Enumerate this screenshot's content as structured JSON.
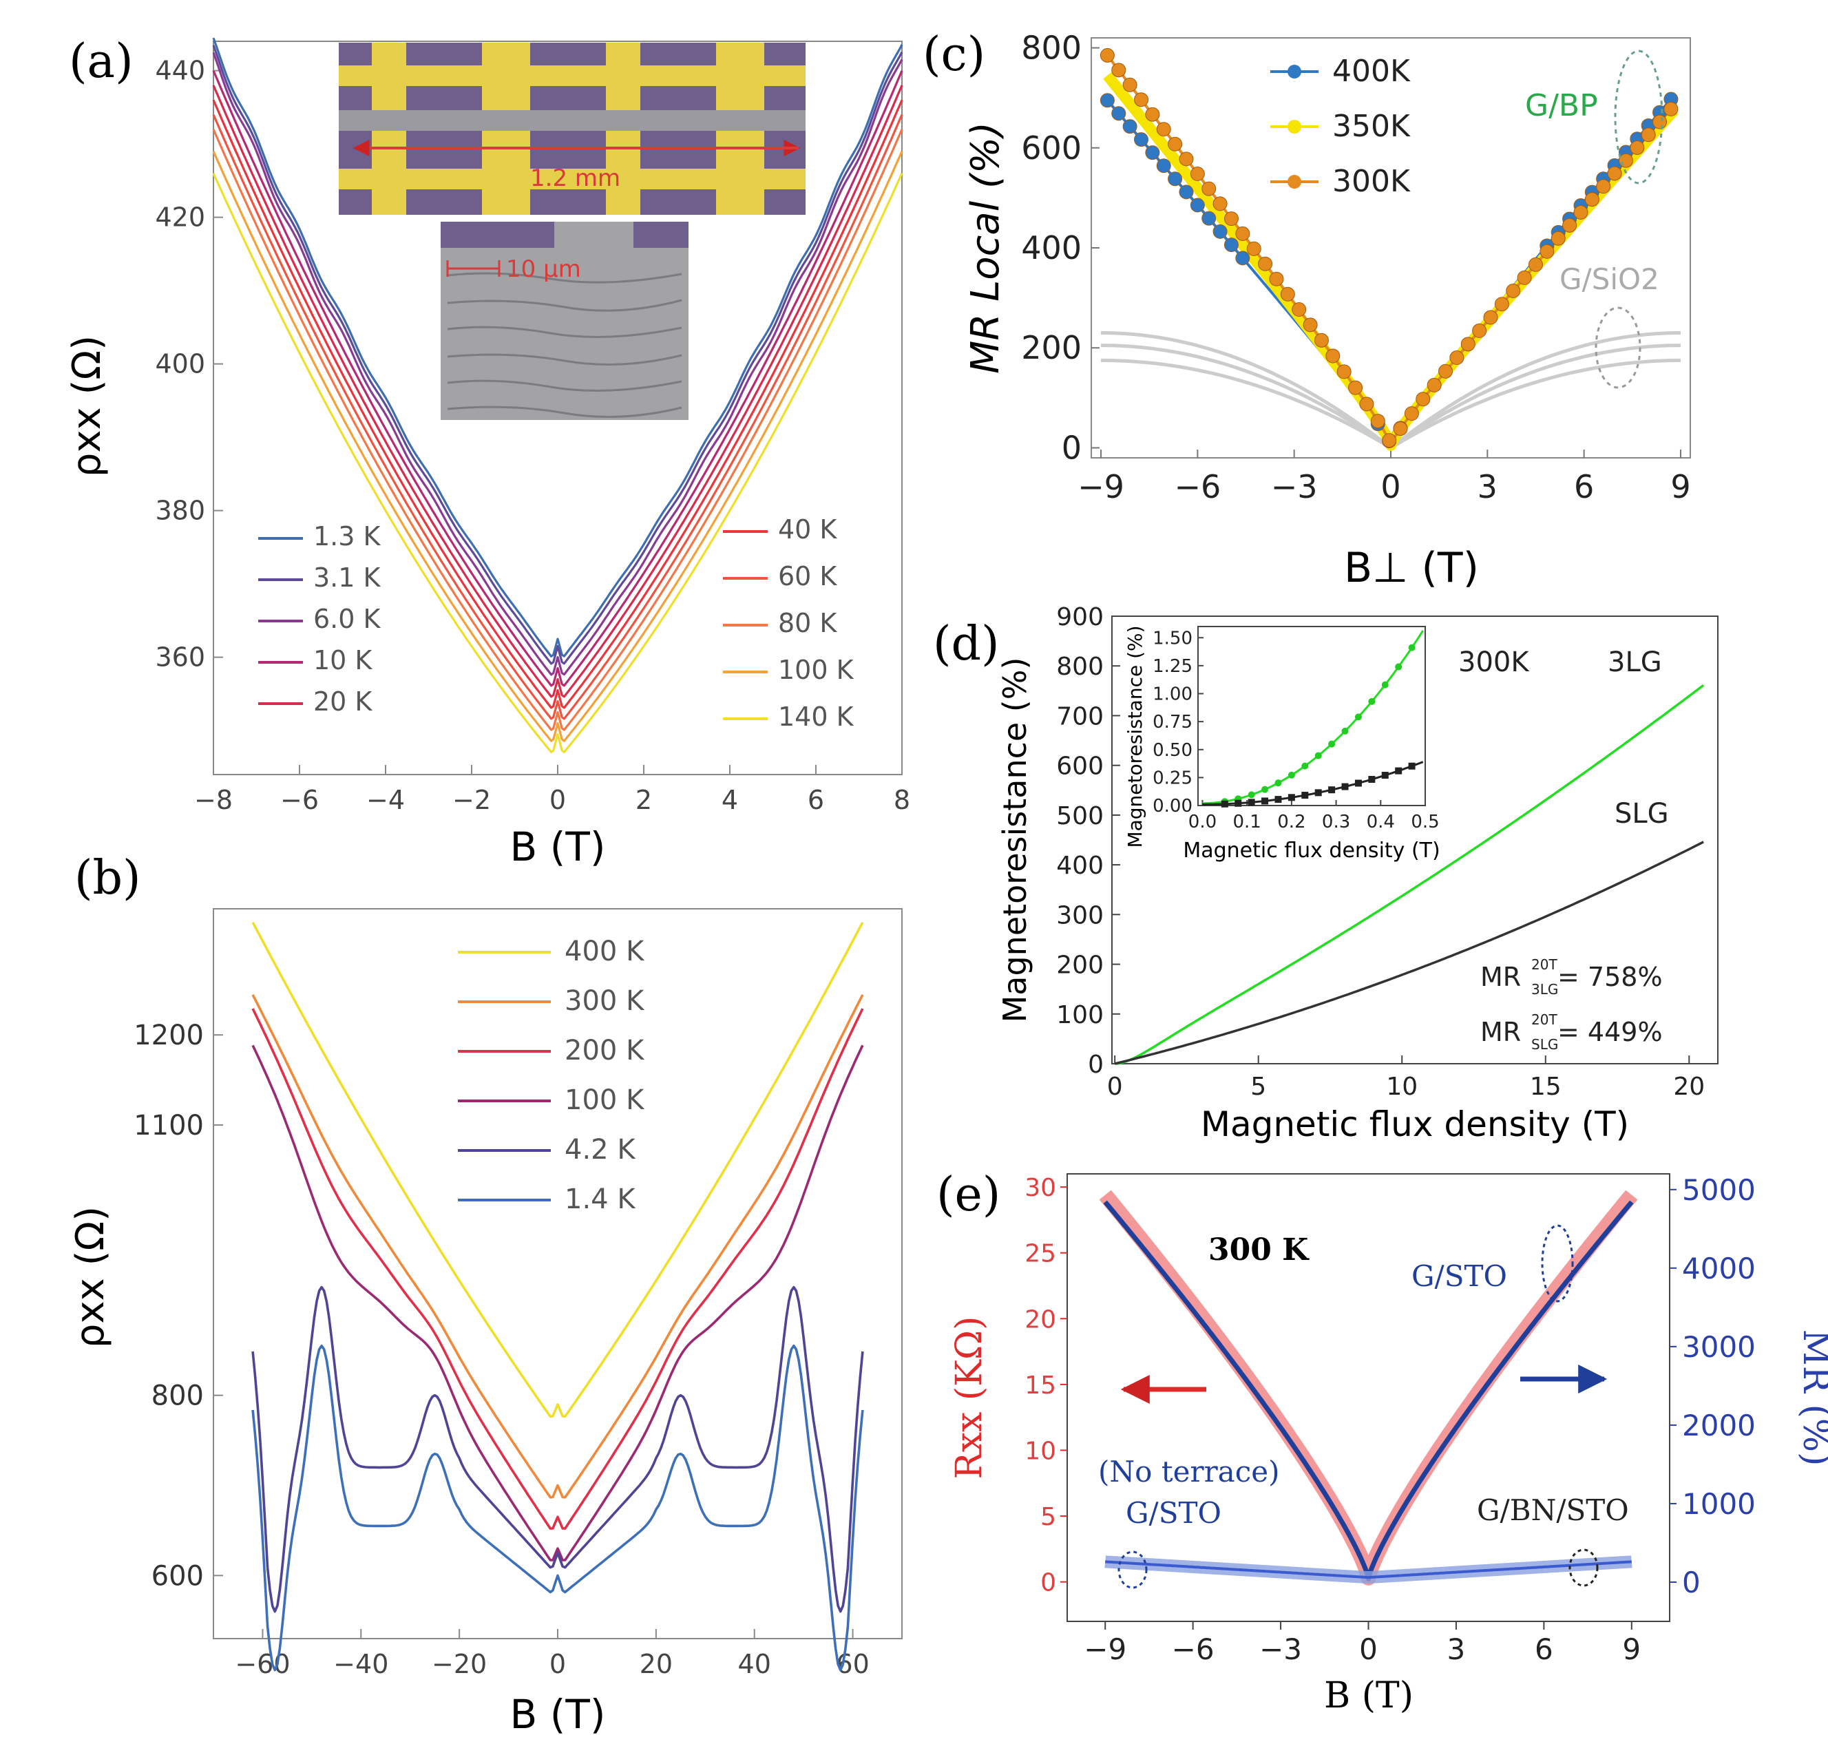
{
  "panels": {
    "a": {
      "label": "(a)",
      "scale_label": "1.2 mm",
      "zoom_label": "10 μm"
    },
    "b": {
      "label": "(b)"
    },
    "c": {
      "label": "(c)",
      "annotation_bp": "G/BP",
      "annotation_sio2": "G/SiO2"
    },
    "d": {
      "label": "(d)",
      "annotation_temp": "300K",
      "annotation_3lg": "3LG",
      "annotation_slg": "SLG",
      "mr_3lg_text": "MR",
      "mr_3lg_sup": "20T",
      "mr_3lg_sub": "3LG",
      "mr_3lg_value": " = 758%",
      "mr_slg_text": "MR",
      "mr_slg_sup": "20T",
      "mr_slg_sub": "SLG",
      "mr_slg_value": " = 449%"
    },
    "e": {
      "label": "(e)",
      "annotation_temp": "300 K",
      "annotation_gsto": "G/STO",
      "annotation_noterrace": "(No terrace)",
      "annotation_gsto2": "G/STO",
      "annotation_gbnsto": "G/BN/STO"
    }
  },
  "colors": {
    "blue400": "#2f78c4",
    "yellow350": "#f5e400",
    "orange300": "#e58a1c",
    "green": "#22dd22",
    "gray": "#333333",
    "red": "#ee3333",
    "navy": "#1f3f9a"
  },
  "chart_data": [
    {
      "panel": "a",
      "type": "line",
      "xlabel": "B (T)",
      "ylabel": "ρxx (Ω)",
      "xlim": [
        -8,
        8
      ],
      "ylim": [
        344,
        444
      ],
      "xticks": [
        "−8",
        "−6",
        "−4",
        "−2",
        "0",
        "2",
        "4",
        "6",
        "8"
      ],
      "yticks": [
        "360",
        "380",
        "400",
        "420",
        "440"
      ],
      "series": [
        {
          "name": "1.3 K",
          "color": "#3d6fb0",
          "min": 359,
          "edge": 444
        },
        {
          "name": "3.1 K",
          "color": "#5d4b9a",
          "min": 358,
          "edge": 443
        },
        {
          "name": "6.0 K",
          "color": "#8a3a93",
          "min": 356.5,
          "edge": 442
        },
        {
          "name": "10 K",
          "color": "#b52a72",
          "min": 355,
          "edge": 440
        },
        {
          "name": "20 K",
          "color": "#d62c4d",
          "min": 353.5,
          "edge": 438
        },
        {
          "name": "40 K",
          "color": "#e8363c",
          "min": 352,
          "edge": 436
        },
        {
          "name": "60 K",
          "color": "#ee5540",
          "min": 350.5,
          "edge": 434
        },
        {
          "name": "80 K",
          "color": "#f27848",
          "min": 349,
          "edge": 432
        },
        {
          "name": "100 K",
          "color": "#f3a23a",
          "min": 347.5,
          "edge": 429
        },
        {
          "name": "140 K",
          "color": "#f0df2a",
          "min": 346,
          "edge": 426
        }
      ]
    },
    {
      "panel": "b",
      "type": "line",
      "xlabel": "B (T)",
      "ylabel": "ρxx (Ω)",
      "xlim": [
        -70,
        70
      ],
      "ylim": [
        530,
        1340
      ],
      "xticks": [
        "−60",
        "−40",
        "−20",
        "0",
        "20",
        "40",
        "60"
      ],
      "yticks": [
        "600",
        "800",
        "1100",
        "1200"
      ],
      "series": [
        {
          "name": "400 K",
          "color": "#f0df2a"
        },
        {
          "name": "300 K",
          "color": "#f08a3a"
        },
        {
          "name": "200 K",
          "color": "#e0304a"
        },
        {
          "name": "100 K",
          "color": "#9a2a72"
        },
        {
          "name": "4.2 K",
          "color": "#4e4594"
        },
        {
          "name": "1.4 K",
          "color": "#3d70b8"
        }
      ]
    },
    {
      "panel": "c",
      "type": "scatter",
      "xlabel": "B⊥ (T)",
      "ylabel": "MR Local (%)",
      "xlim": [
        -9,
        9
      ],
      "ylim": [
        0,
        800
      ],
      "xticks": [
        "−9",
        "−6",
        "−3",
        "0",
        "3",
        "6",
        "9"
      ],
      "yticks": [
        "0",
        "200",
        "400",
        "600",
        "800"
      ],
      "series": [
        {
          "name": "400K",
          "color": "#2f78c4",
          "left": 690,
          "right": 700
        },
        {
          "name": "350K",
          "color": "#f5e400",
          "left": 740,
          "right": 670
        },
        {
          "name": "300K",
          "color": "#e58a1c",
          "left": 780,
          "right": 680
        }
      ]
    },
    {
      "panel": "d",
      "type": "line",
      "xlabel": "Magnetic flux density (T)",
      "ylabel": "Magnetoresistance (%)",
      "xlim": [
        0,
        21
      ],
      "ylim": [
        0,
        900
      ],
      "xticks": [
        "0",
        "5",
        "10",
        "15",
        "20"
      ],
      "yticks": [
        "0",
        "100",
        "200",
        "300",
        "400",
        "500",
        "600",
        "700",
        "800",
        "900"
      ],
      "series": [
        {
          "name": "3LG",
          "color": "#22dd22",
          "end": 758
        },
        {
          "name": "SLG",
          "color": "#333333",
          "end": 449
        }
      ],
      "inset": {
        "xlabel": "Magnetic flux density (T)",
        "ylabel": "Magnetoresistance (%)",
        "xlim": [
          0,
          0.5
        ],
        "ylim": [
          0,
          1.6
        ],
        "xticks": [
          "0.0",
          "0.1",
          "0.2",
          "0.3",
          "0.4",
          "0.5"
        ],
        "yticks": [
          "0.00",
          "0.25",
          "0.50",
          "0.75",
          "1.00",
          "1.25",
          "1.50"
        ]
      }
    },
    {
      "panel": "e",
      "type": "scatter",
      "xlabel": "B (T)",
      "ylabel_left": "Rxx (KΩ)",
      "ylabel_right": "MR (%)",
      "xlim": [
        -10,
        10
      ],
      "ylim_left": [
        -3,
        31
      ],
      "ylim_right": [
        -500,
        5200
      ],
      "xticks": [
        "−9",
        "−6",
        "−3",
        "0",
        "3",
        "6",
        "9"
      ],
      "yticks_left": [
        "0",
        "5",
        "10",
        "15",
        "20",
        "25",
        "30"
      ],
      "yticks_right": [
        "0",
        "1000",
        "2000",
        "3000",
        "4000",
        "5000"
      ],
      "series": [
        {
          "name": "G/STO Rxx",
          "color": "#ee3333",
          "end": 29.7
        },
        {
          "name": "G/STO MR",
          "color": "#1f3f9a",
          "end": 4900
        },
        {
          "name": "G/BN/STO MR",
          "color": "#3a5ad0",
          "end": 260
        }
      ]
    }
  ]
}
